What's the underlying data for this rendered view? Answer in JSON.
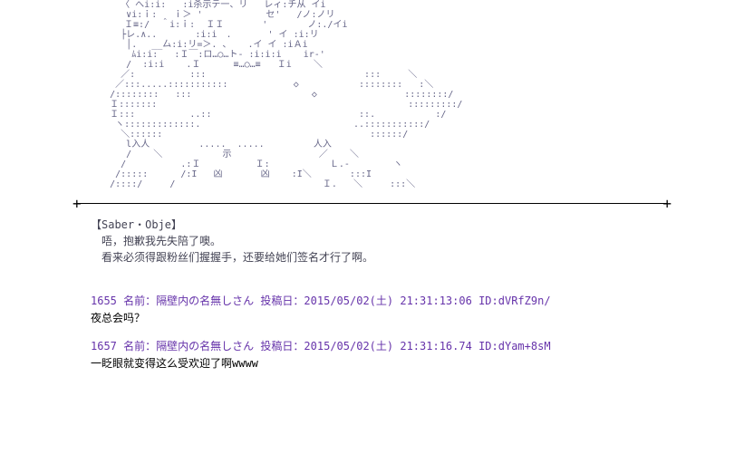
{
  "ascii_art": "        〈 へi:i:   :i杀示テ一、リ   レィ:チ从 イi\n         ∨i:ｉ:   ｉ＞ '　　　　　　　セ'   /ノ:ノリ\n　　　　  Ｉ≡:/  ＾i:ｉ:  ＩＩ　　　  '  　  　ノ:./イi\n        ├レ.∧..       :i:i　.　　　　' イ :i:リ\n         │.　 __厶:i:リ=＞. 、   .イ イ :iＡi\n          ﾑi:i:   :Ｉ￣:ロ…○…ト- :i:i:i    ir-'\n         /  :i:i    .Ｉ      ≡…○…≡   Ｉi    ＼\n        ／:          :::                             :::     ＼\n       ／:::.....:::::::::::            ◇           ::::::::   :＼\n      /::::::::   :::                      ◇                ::::::::/\n      Ｉ:::::::                                              :::::::::/\n      Ｉ:::          ..::                           ::.           :/\n       ヽ:::::::::::::.                            ..:::::::::::/\n        ＼::::::                                      ::::::/\n         l入人         .....  .....         人入\n         /    ＼           示                ／    ＼\n        /          .:Ｉ          Ｉ:           Ｌ.-        ヽ\n       /:::::      /:I   凶       凶    :I＼       :::I\n      /::::/     /                           Ｉ.   ＼     :::＼",
  "dialogue": {
    "speaker": "【Saber・Obje】",
    "line1": "唔，抱歉我先失陪了噢。",
    "line2": "看来必须得跟粉丝们握握手，还要给她们签名才行了啊。"
  },
  "posts": [
    {
      "number": "1655",
      "name_label": "名前：",
      "name": "隔壁内の名無しさん",
      "post_label": "投稿日：",
      "date": "2015/05/02(土) 21:31:13:06",
      "id_label": "ID:",
      "id": "dVRfZ9n/",
      "body": "夜总会吗？"
    },
    {
      "number": "1657",
      "name_label": "名前：",
      "name": "隔壁内の名無しさん",
      "post_label": "投稿日：",
      "date": "2015/05/02(土) 21:31:16.74",
      "id_label": "ID:",
      "id": "dYam+8sM",
      "body": "一眨眼就变得这么受欢迎了啊wwww"
    }
  ],
  "colors": {
    "ascii": "#666688",
    "header": "#6633aa",
    "body": "#000000",
    "dialogue": "#444455"
  }
}
